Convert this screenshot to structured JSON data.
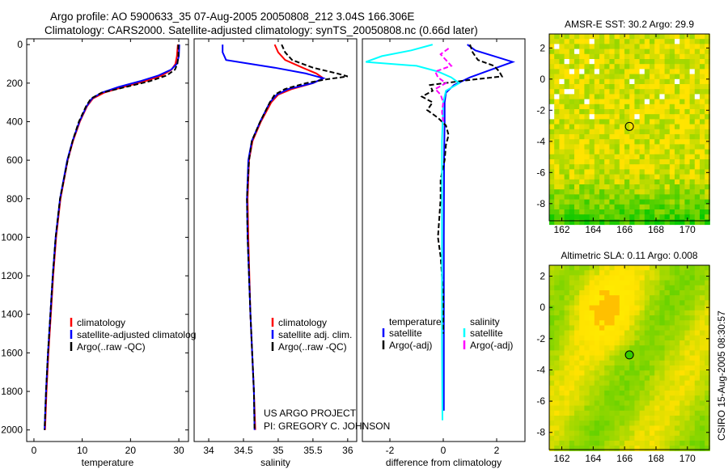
{
  "header": {
    "title_line1": "Argo profile: AO 5900633_35 07-Aug-2005 20050808_212 3.04S 166.306E",
    "title_line2": "Climatology: CARS2000. Satellite-adjusted climatology: synTS_20050808.nc (0.66d later)"
  },
  "side_label": "CSIRO 15-Aug-2005 08:30:57",
  "annotation": {
    "line1": "US ARGO PROJECT",
    "line2": "PI: GREGORY C. JOHNSON"
  },
  "colors": {
    "climatology": "#ff0000",
    "satellite": "#0000ff",
    "argo": "#000000",
    "sal_satellite": "#00ffff",
    "sal_argo": "#ff00ff"
  },
  "chart_data": [
    {
      "type": "line",
      "id": "temperature",
      "xlabel": "temperature",
      "ylabel": "",
      "xlim": [
        -1.5,
        32
      ],
      "ylim": [
        2060,
        -30
      ],
      "xticks": [
        0,
        10,
        20,
        30
      ],
      "yticks": [
        0,
        200,
        400,
        600,
        800,
        1000,
        1200,
        1400,
        1600,
        1800,
        2000
      ],
      "legend": [
        "climatology",
        "satellite-adjusted climatolog",
        "Argo(..raw -QC)"
      ],
      "series": [
        {
          "name": "climatology",
          "color": "#ff0000",
          "dash": false,
          "depth": [
            0,
            60,
            100,
            130,
            160,
            190,
            220,
            250,
            280,
            320,
            400,
            500,
            600,
            800,
            1000,
            1200,
            1400,
            1600,
            1800,
            2000
          ],
          "values": [
            29.8,
            29.6,
            29.3,
            28.5,
            26.5,
            23,
            18.5,
            14.5,
            12.2,
            11,
            9.5,
            8.1,
            7.0,
            5.5,
            4.6,
            4.0,
            3.5,
            3.0,
            2.6,
            2.3
          ]
        },
        {
          "name": "satellite-adjusted climatology",
          "color": "#0000ff",
          "dash": false,
          "depth": [
            0,
            60,
            100,
            130,
            160,
            190,
            220,
            250,
            280,
            320,
            400,
            500,
            600,
            800,
            1000,
            1200,
            1400,
            1600,
            1800,
            2000
          ],
          "values": [
            30.1,
            30.0,
            29.6,
            28.4,
            25.8,
            22,
            17.5,
            14,
            12,
            10.9,
            9.4,
            8.0,
            6.9,
            5.4,
            4.5,
            3.9,
            3.4,
            2.9,
            2.5,
            2.2
          ]
        },
        {
          "name": "Argo(..raw -QC)",
          "color": "#000000",
          "dash": true,
          "depth": [
            0,
            60,
            100,
            130,
            160,
            190,
            220,
            250,
            280,
            320,
            400,
            500,
            600,
            800,
            1000,
            1200,
            1400,
            1600,
            1800,
            2000
          ],
          "values": [
            29.9,
            29.9,
            29.7,
            29.2,
            27.5,
            24,
            19,
            14,
            11.8,
            10.8,
            9.3,
            8.0,
            7.0,
            5.4,
            4.5,
            3.9,
            3.4,
            2.9,
            2.5,
            2.2
          ]
        }
      ]
    },
    {
      "type": "line",
      "id": "salinity",
      "xlabel": "salinity",
      "ylabel": "",
      "xlim": [
        33.79,
        36.13
      ],
      "ylim": [
        2060,
        -30
      ],
      "xticks": [
        34,
        34.5,
        35,
        35.5,
        36
      ],
      "yticks": [],
      "legend": [
        "climatology",
        "satellite adj. clim.",
        "Argo(..raw -QC)"
      ],
      "series": [
        {
          "name": "climatology",
          "color": "#ff0000",
          "dash": false,
          "depth": [
            0,
            40,
            80,
            120,
            150,
            175,
            200,
            230,
            260,
            300,
            400,
            500,
            600,
            800,
            1000,
            1400,
            1800,
            2000
          ],
          "values": [
            34.95,
            35.0,
            35.1,
            35.35,
            35.55,
            35.65,
            35.5,
            35.2,
            35.0,
            34.9,
            34.75,
            34.63,
            34.58,
            34.56,
            34.57,
            34.6,
            34.65,
            34.67
          ]
        },
        {
          "name": "satellite adj. clim.",
          "color": "#0000ff",
          "dash": false,
          "depth": [
            0,
            40,
            80,
            100,
            120,
            150,
            175,
            200,
            230,
            260,
            300,
            400,
            500,
            600,
            800,
            1000,
            1400,
            1800,
            2000
          ],
          "values": [
            34.2,
            34.2,
            34.25,
            34.6,
            34.95,
            35.4,
            35.65,
            35.5,
            35.15,
            34.98,
            34.88,
            34.74,
            34.62,
            34.57,
            34.55,
            34.56,
            34.6,
            34.65,
            34.66
          ]
        },
        {
          "name": "Argo(..raw -QC)",
          "color": "#000000",
          "dash": true,
          "depth": [
            0,
            40,
            80,
            120,
            150,
            165,
            180,
            200,
            230,
            260,
            300,
            400,
            500,
            600,
            800,
            1000,
            1400,
            1800,
            2000
          ],
          "values": [
            35.05,
            35.1,
            35.2,
            35.5,
            35.85,
            36.0,
            35.7,
            35.4,
            35.1,
            34.95,
            34.88,
            34.74,
            34.62,
            34.58,
            34.55,
            34.56,
            34.6,
            34.65,
            34.66
          ]
        }
      ]
    },
    {
      "type": "line",
      "id": "difference",
      "xlabel": "difference from climatology",
      "ylabel": "",
      "xlim": [
        -3.03,
        3.06
      ],
      "ylim": [
        2060,
        -30
      ],
      "xticks": [
        -2,
        0,
        2
      ],
      "yticks": [],
      "legend": {
        "temperature_header": "temperature",
        "salinity_header": "salinity",
        "temp_satellite": "satellite",
        "temp_argo": "Argo(-adj)",
        "sal_satellite": "satellite",
        "sal_argo": "Argo(-adj)"
      },
      "series": [
        {
          "name": "temperature satellite",
          "color": "#0000ff",
          "dash": false,
          "depth": [
            0,
            30,
            60,
            90,
            130,
            170,
            210,
            250,
            300,
            400,
            600,
            1000,
            1400,
            1900
          ],
          "values": [
            0.9,
            1.2,
            1.9,
            2.6,
            1.8,
            1.0,
            0.4,
            0.1,
            0.05,
            0.05,
            0.03,
            0.02,
            0.02,
            0.02
          ]
        },
        {
          "name": "temperature Argo(-adj)",
          "color": "#000000",
          "dash": true,
          "depth": [
            0,
            40,
            80,
            110,
            140,
            165,
            185,
            210,
            240,
            270,
            300,
            340,
            380,
            420,
            470,
            520,
            600,
            700,
            800,
            900,
            1000,
            1100,
            1300,
            1500
          ],
          "values": [
            1.0,
            1.1,
            1.3,
            1.9,
            2.1,
            2.2,
            0.9,
            -0.5,
            -0.4,
            -0.8,
            -0.4,
            -0.6,
            -0.2,
            0.1,
            0.2,
            0.1,
            0.05,
            -0.1,
            -0.1,
            -0.15,
            -0.2,
            -0.1,
            0,
            0
          ]
        },
        {
          "name": "salinity satellite",
          "color": "#00ffff",
          "dash": false,
          "depth": [
            0,
            30,
            60,
            90,
            110,
            140,
            170,
            200,
            240,
            300,
            500,
            1000,
            1500,
            1950
          ],
          "values": [
            -0.4,
            -1.2,
            -2.3,
            -2.9,
            -1.0,
            -0.2,
            0.3,
            0.6,
            0.1,
            0.0,
            -0.05,
            -0.05,
            -0.05,
            -0.03
          ]
        },
        {
          "name": "salinity Argo(-adj)",
          "color": "#ff00ff",
          "dash": true,
          "depth": [
            20,
            50,
            80,
            110,
            140,
            170,
            200,
            230,
            260,
            300,
            350,
            400
          ],
          "values": [
            0.2,
            -0.1,
            0.1,
            0.3,
            -0.3,
            -0.2,
            0.1,
            -0.3,
            -0.1,
            0.0,
            -0.05,
            0.0
          ]
        }
      ]
    },
    {
      "type": "heatmap",
      "id": "sst-map",
      "title": "AMSR-E SST: 30.2  Argo: 29.9",
      "xlim": [
        161.2,
        171.4
      ],
      "ylim": [
        -9.1,
        2.9
      ],
      "xticks": [
        162,
        164,
        166,
        168,
        170
      ],
      "yticks": [
        2,
        0,
        -2,
        -4,
        -6,
        -8
      ],
      "marker": {
        "lon": 166.306,
        "lat": -3.04
      }
    },
    {
      "type": "heatmap",
      "id": "sla-map",
      "title": "Altimetric SLA: 0.11  Argo: 0.008",
      "xlim": [
        161.2,
        171.4
      ],
      "ylim": [
        -9.1,
        2.7
      ],
      "xticks": [
        162,
        164,
        166,
        168,
        170
      ],
      "yticks": [
        2,
        0,
        -2,
        -4,
        -6,
        -8
      ],
      "marker": {
        "lon": 166.306,
        "lat": -3.04
      }
    }
  ]
}
